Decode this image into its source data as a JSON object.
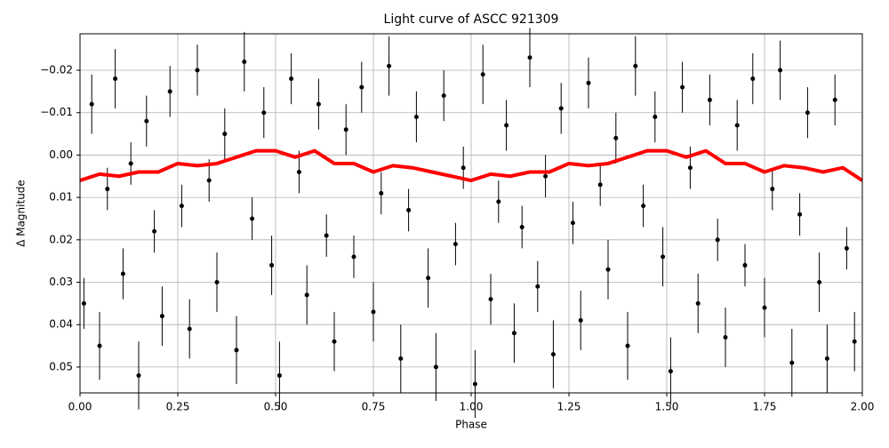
{
  "chart_data": {
    "type": "errorbar-scatter",
    "title": "Light curve of ASCC 921309",
    "x_label": "Phase",
    "y_label": "Δ Magnitude",
    "xlim": [
      0,
      2
    ],
    "ylim": [
      0.0561,
      -0.0286
    ],
    "xticks": [
      {
        "value": 0,
        "label": "0.00"
      },
      0.25,
      {
        "value": 0.5,
        "label": "0.50"
      },
      0.75,
      {
        "value": 1,
        "label": "1.00"
      },
      1.25,
      {
        "value": 1.5,
        "label": "1.50"
      },
      1.75,
      {
        "value": 2,
        "label": "2.00"
      }
    ],
    "yticks": [
      {
        "value": -0.02,
        "label": "−0.02"
      },
      {
        "value": -0.01,
        "label": "−0.01"
      },
      {
        "value": 0,
        "label": "0.00"
      },
      0.01,
      0.02,
      0.03,
      0.04,
      0.05
    ],
    "grid": true,
    "series": [
      {
        "color": "#000000",
        "x": [
          0.01,
          0.03,
          0.05,
          0.07,
          0.09,
          0.11,
          0.13,
          0.15,
          0.17,
          0.19,
          0.21,
          0.23,
          0.26,
          0.28,
          0.3,
          0.33,
          0.35,
          0.37,
          0.4,
          0.42,
          0.44,
          0.47,
          0.49,
          0.51,
          0.54,
          0.56,
          0.58,
          0.61,
          0.63,
          0.65,
          0.68,
          0.7,
          0.72,
          0.75,
          0.77,
          0.79,
          0.82,
          0.84,
          0.86,
          0.89,
          0.91,
          0.93,
          0.96,
          0.98,
          1.01,
          1.03,
          1.05,
          1.07,
          1.09,
          1.11,
          1.13,
          1.15,
          1.17,
          1.19,
          1.21,
          1.23,
          1.26,
          1.28,
          1.3,
          1.33,
          1.35,
          1.37,
          1.4,
          1.42,
          1.44,
          1.47,
          1.49,
          1.51,
          1.54,
          1.56,
          1.58,
          1.61,
          1.63,
          1.65,
          1.68,
          1.7,
          1.72,
          1.75,
          1.77,
          1.79,
          1.82,
          1.84,
          1.86,
          1.89,
          1.91,
          1.93,
          1.96,
          1.98
        ],
        "values": [
          0.035,
          -0.012,
          0.045,
          0.008,
          -0.018,
          0.028,
          0.002,
          0.052,
          -0.008,
          0.018,
          0.038,
          -0.015,
          0.012,
          0.041,
          -0.02,
          0.006,
          0.03,
          -0.005,
          0.046,
          -0.022,
          0.015,
          -0.01,
          0.026,
          0.052,
          -0.018,
          0.004,
          0.033,
          -0.012,
          0.019,
          0.044,
          -0.006,
          0.024,
          -0.016,
          0.037,
          0.009,
          -0.021,
          0.048,
          0.013,
          -0.009,
          0.029,
          0.05,
          -0.014,
          0.021,
          0.003,
          0.054,
          -0.019,
          0.034,
          0.011,
          -0.007,
          0.042,
          0.017,
          -0.023,
          0.031,
          0.005,
          0.047,
          -0.011,
          0.016,
          0.039,
          -0.017,
          0.007,
          0.027,
          -0.004,
          0.045,
          -0.021,
          0.012,
          -0.009,
          0.024,
          0.051,
          -0.016,
          0.003,
          0.035,
          -0.013,
          0.02,
          0.043,
          -0.007,
          0.026,
          -0.018,
          0.036,
          0.008,
          -0.02,
          0.049,
          0.014,
          -0.01,
          0.03,
          0.048,
          -0.013,
          0.022,
          0.044
        ],
        "errors": [
          0.006,
          0.007,
          0.008,
          0.005,
          0.007,
          0.006,
          0.005,
          0.008,
          0.006,
          0.005,
          0.007,
          0.006,
          0.005,
          0.007,
          0.006,
          0.005,
          0.007,
          0.006,
          0.008,
          0.007,
          0.005,
          0.006,
          0.007,
          0.008,
          0.006,
          0.005,
          0.007,
          0.006,
          0.005,
          0.007,
          0.006,
          0.005,
          0.006,
          0.007,
          0.005,
          0.007,
          0.008,
          0.005,
          0.006,
          0.007,
          0.008,
          0.006,
          0.005,
          0.005,
          0.008,
          0.007,
          0.006,
          0.005,
          0.006,
          0.007,
          0.005,
          0.007,
          0.006,
          0.005,
          0.008,
          0.006,
          0.005,
          0.007,
          0.006,
          0.005,
          0.007,
          0.006,
          0.008,
          0.007,
          0.005,
          0.006,
          0.007,
          0.008,
          0.006,
          0.005,
          0.007,
          0.006,
          0.005,
          0.007,
          0.006,
          0.005,
          0.006,
          0.007,
          0.005,
          0.007,
          0.008,
          0.005,
          0.006,
          0.007,
          0.008,
          0.006,
          0.005,
          0.007
        ]
      },
      {
        "color": "#ff0000",
        "x": [
          0,
          0.05,
          0.1,
          0.15,
          0.2,
          0.25,
          0.3,
          0.35,
          0.4,
          0.45,
          0.5,
          0.55,
          0.6,
          0.65,
          0.7,
          0.75,
          0.8,
          0.85,
          0.9,
          0.95,
          1,
          1.05,
          1.1,
          1.15,
          1.2,
          1.25,
          1.3,
          1.35,
          1.4,
          1.45,
          1.5,
          1.55,
          1.6,
          1.65,
          1.7,
          1.75,
          1.8,
          1.85,
          1.9,
          1.95,
          2
        ],
        "values": [
          0.006,
          0.0045,
          0.005,
          0.004,
          0.004,
          0.002,
          0.0025,
          0.002,
          0.0005,
          -0.001,
          -0.001,
          0.0005,
          -0.001,
          0.002,
          0.002,
          0.004,
          0.0025,
          0.003,
          0.004,
          0.005,
          0.006,
          0.0045,
          0.005,
          0.004,
          0.004,
          0.002,
          0.0025,
          0.002,
          0.0005,
          -0.001,
          -0.001,
          0.0005,
          -0.001,
          0.002,
          0.002,
          0.004,
          0.0025,
          0.003,
          0.004,
          0.003,
          0.006
        ]
      }
    ]
  }
}
